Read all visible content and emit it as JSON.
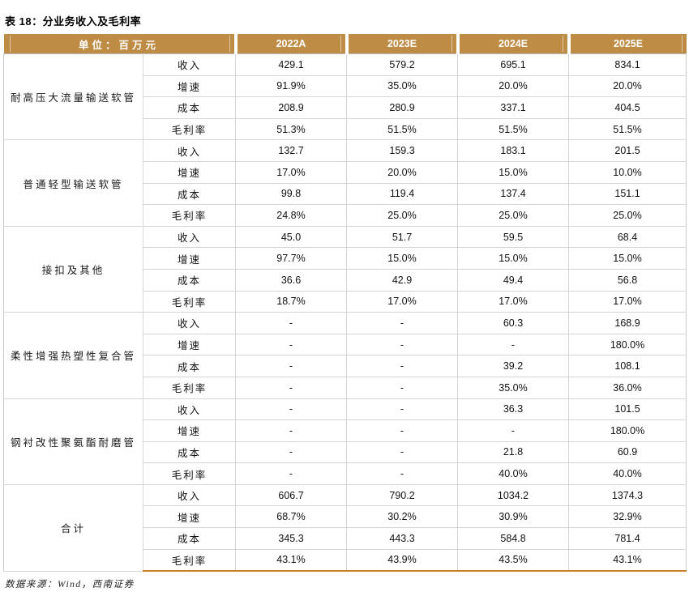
{
  "title": "表 18：分业务收入及毛利率",
  "table": {
    "unit_label": "单位：百万元",
    "columns": [
      "2022A",
      "2023E",
      "2024E",
      "2025E"
    ],
    "metrics": [
      "收入",
      "增速",
      "成本",
      "毛利率"
    ],
    "groups": [
      {
        "name": "耐高压大流量输送软管",
        "values": [
          [
            "429.1",
            "579.2",
            "695.1",
            "834.1"
          ],
          [
            "91.9%",
            "35.0%",
            "20.0%",
            "20.0%"
          ],
          [
            "208.9",
            "280.9",
            "337.1",
            "404.5"
          ],
          [
            "51.3%",
            "51.5%",
            "51.5%",
            "51.5%"
          ]
        ]
      },
      {
        "name": "普通轻型输送软管",
        "values": [
          [
            "132.7",
            "159.3",
            "183.1",
            "201.5"
          ],
          [
            "17.0%",
            "20.0%",
            "15.0%",
            "10.0%"
          ],
          [
            "99.8",
            "119.4",
            "137.4",
            "151.1"
          ],
          [
            "24.8%",
            "25.0%",
            "25.0%",
            "25.0%"
          ]
        ]
      },
      {
        "name": "接扣及其他",
        "values": [
          [
            "45.0",
            "51.7",
            "59.5",
            "68.4"
          ],
          [
            "97.7%",
            "15.0%",
            "15.0%",
            "15.0%"
          ],
          [
            "36.6",
            "42.9",
            "49.4",
            "56.8"
          ],
          [
            "18.7%",
            "17.0%",
            "17.0%",
            "17.0%"
          ]
        ]
      },
      {
        "name": "柔性增强热塑性复合管",
        "values": [
          [
            "-",
            "-",
            "60.3",
            "168.9"
          ],
          [
            "-",
            "-",
            "-",
            "180.0%"
          ],
          [
            "-",
            "-",
            "39.2",
            "108.1"
          ],
          [
            "-",
            "-",
            "35.0%",
            "36.0%"
          ]
        ]
      },
      {
        "name": "钢衬改性聚氨酯耐磨管",
        "values": [
          [
            "-",
            "-",
            "36.3",
            "101.5"
          ],
          [
            "-",
            "-",
            "-",
            "180.0%"
          ],
          [
            "-",
            "-",
            "21.8",
            "60.9"
          ],
          [
            "-",
            "-",
            "40.0%",
            "40.0%"
          ]
        ]
      },
      {
        "name": "合计",
        "values": [
          [
            "606.7",
            "790.2",
            "1034.2",
            "1374.3"
          ],
          [
            "68.7%",
            "30.2%",
            "30.9%",
            "32.9%"
          ],
          [
            "345.3",
            "443.3",
            "584.8",
            "781.4"
          ],
          [
            "43.1%",
            "43.9%",
            "43.5%",
            "43.1%"
          ]
        ]
      }
    ]
  },
  "footer": {
    "source": "数据来源：Wind，西南证券"
  },
  "colors": {
    "header_bg": "#BE8C45",
    "header_text": "#FFFFFF",
    "grid_line": "#D6D6D6",
    "group_line": "#BDBDBD",
    "bottom_accent": "#C9802E"
  }
}
